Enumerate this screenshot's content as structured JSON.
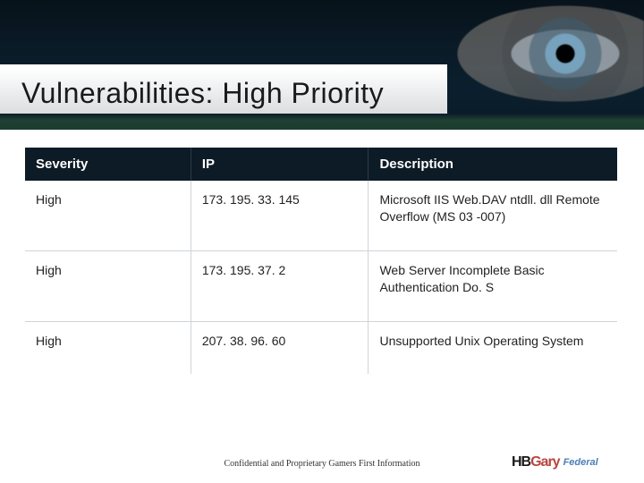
{
  "title": "Vulnerabilities:  High Priority",
  "table": {
    "columns": [
      "Severity",
      "IP",
      "Description"
    ],
    "rows": [
      {
        "severity": "High",
        "ip": "173. 195. 33. 145",
        "description": "Microsoft IIS Web.DAV ntdll. dll Remote Overflow (MS 03 -007)"
      },
      {
        "severity": "High",
        "ip": "173. 195. 37. 2",
        "description": "Web Server Incomplete Basic Authentication Do. S"
      },
      {
        "severity": "High",
        "ip": "207. 38. 96. 60",
        "description": "Unsupported Unix Operating System"
      }
    ],
    "header_bg": "#0d1b26",
    "header_fg": "#ffffff",
    "cell_border": "#cfd4d8",
    "cell_fg": "#222222",
    "header_fontsize": 15,
    "cell_fontsize": 14,
    "col_widths_pct": [
      28,
      30,
      42
    ]
  },
  "footer": "Confidential and Proprietary Gamers First Information",
  "logo": {
    "brand_a": "HB",
    "brand_b": "Gary",
    "sub": "Federal"
  },
  "colors": {
    "page_bg": "#ffffff",
    "header_gradient_top": "#07121a",
    "header_gradient_bottom": "#0a1b28",
    "green_band": "rgba(70,130,70,0.45)"
  },
  "title_fontsize": 32
}
